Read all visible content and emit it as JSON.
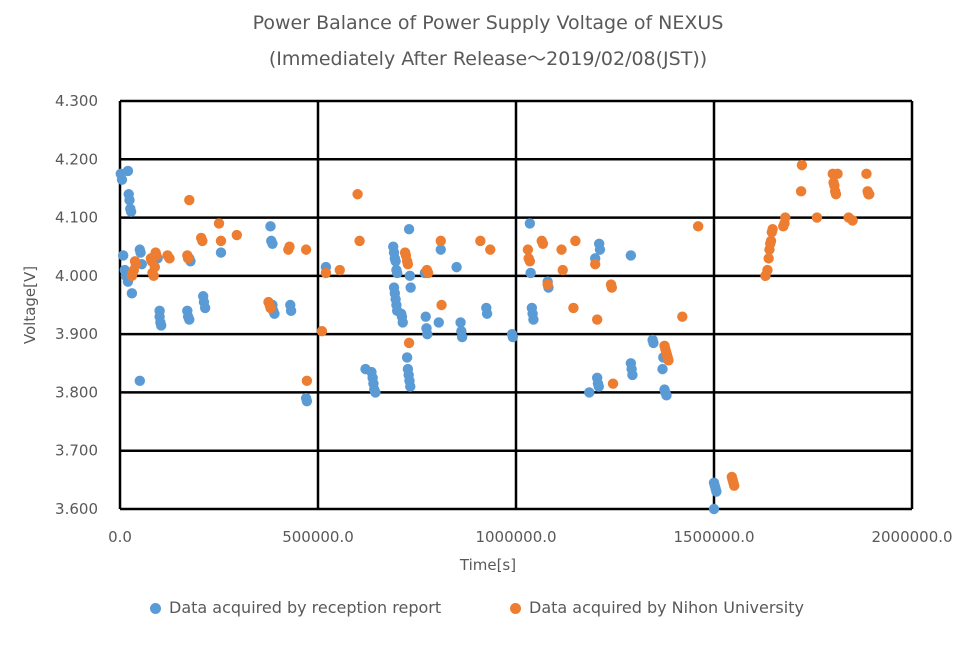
{
  "chart_data": {
    "type": "scatter",
    "title": "Power Balance of Power Supply Voltage of NEXUS",
    "subtitle": "(Immediately After Release～2019/02/08(JST))",
    "xlabel": "Time[s]",
    "ylabel": "Voltage[V]",
    "xlim": [
      0,
      2000000
    ],
    "ylim": [
      3.6,
      4.3
    ],
    "x_ticks": [
      "0.0",
      "500000.0",
      "1000000.0",
      "1500000.0",
      "2000000.0"
    ],
    "y_ticks": [
      "3.600",
      "3.700",
      "3.800",
      "3.900",
      "4.000",
      "4.100",
      "4.200",
      "4.300"
    ],
    "grid": true,
    "legend_position": "bottom",
    "series": [
      {
        "name": "Data acquired by reception report",
        "color": "#5B9BD5",
        "points": [
          [
            2000,
            4.175
          ],
          [
            5000,
            4.165
          ],
          [
            8000,
            4.035
          ],
          [
            12000,
            4.01
          ],
          [
            15000,
            4.0
          ],
          [
            20000,
            3.99
          ],
          [
            20000,
            4.18
          ],
          [
            22000,
            4.14
          ],
          [
            24000,
            4.13
          ],
          [
            26000,
            4.115
          ],
          [
            28000,
            4.11
          ],
          [
            30000,
            3.97
          ],
          [
            50000,
            3.82
          ],
          [
            50000,
            4.045
          ],
          [
            52000,
            4.04
          ],
          [
            55000,
            4.02
          ],
          [
            95000,
            4.03
          ],
          [
            100000,
            3.94
          ],
          [
            100000,
            3.93
          ],
          [
            102000,
            3.92
          ],
          [
            104000,
            3.915
          ],
          [
            170000,
            3.94
          ],
          [
            172000,
            3.93
          ],
          [
            175000,
            3.925
          ],
          [
            175000,
            4.03
          ],
          [
            178000,
            4.025
          ],
          [
            210000,
            3.965
          ],
          [
            212000,
            3.955
          ],
          [
            215000,
            3.945
          ],
          [
            255000,
            4.04
          ],
          [
            380000,
            4.085
          ],
          [
            382000,
            4.06
          ],
          [
            385000,
            4.055
          ],
          [
            385000,
            3.95
          ],
          [
            387000,
            3.94
          ],
          [
            390000,
            3.935
          ],
          [
            430000,
            3.95
          ],
          [
            432000,
            3.94
          ],
          [
            470000,
            3.79
          ],
          [
            472000,
            3.785
          ],
          [
            520000,
            4.015
          ],
          [
            620000,
            3.84
          ],
          [
            635000,
            3.835
          ],
          [
            638000,
            3.825
          ],
          [
            640000,
            3.815
          ],
          [
            642000,
            3.805
          ],
          [
            645000,
            3.8
          ],
          [
            690000,
            4.05
          ],
          [
            692000,
            4.04
          ],
          [
            694000,
            4.03
          ],
          [
            696000,
            4.025
          ],
          [
            698000,
            4.01
          ],
          [
            700000,
            4.005
          ],
          [
            692000,
            3.98
          ],
          [
            694000,
            3.97
          ],
          [
            696000,
            3.96
          ],
          [
            698000,
            3.95
          ],
          [
            700000,
            3.94
          ],
          [
            710000,
            3.935
          ],
          [
            712000,
            3.93
          ],
          [
            714000,
            3.92
          ],
          [
            725000,
            3.86
          ],
          [
            727000,
            3.84
          ],
          [
            729000,
            3.83
          ],
          [
            731000,
            3.82
          ],
          [
            733000,
            3.81
          ],
          [
            730000,
            4.08
          ],
          [
            732000,
            4.0
          ],
          [
            734000,
            3.98
          ],
          [
            770000,
            4.005
          ],
          [
            772000,
            3.93
          ],
          [
            774000,
            3.91
          ],
          [
            776000,
            3.9
          ],
          [
            805000,
            3.92
          ],
          [
            810000,
            4.045
          ],
          [
            850000,
            4.015
          ],
          [
            860000,
            3.92
          ],
          [
            862000,
            3.905
          ],
          [
            864000,
            3.895
          ],
          [
            925000,
            3.945
          ],
          [
            927000,
            3.935
          ],
          [
            990000,
            3.9
          ],
          [
            992000,
            3.895
          ],
          [
            1035000,
            4.09
          ],
          [
            1037000,
            4.005
          ],
          [
            1040000,
            3.945
          ],
          [
            1042000,
            3.935
          ],
          [
            1044000,
            3.925
          ],
          [
            1080000,
            3.99
          ],
          [
            1082000,
            3.98
          ],
          [
            1185000,
            3.8
          ],
          [
            1200000,
            4.03
          ],
          [
            1205000,
            3.825
          ],
          [
            1207000,
            3.815
          ],
          [
            1209000,
            3.81
          ],
          [
            1210000,
            4.055
          ],
          [
            1212000,
            4.045
          ],
          [
            1290000,
            4.035
          ],
          [
            1290000,
            3.85
          ],
          [
            1292000,
            3.84
          ],
          [
            1294000,
            3.83
          ],
          [
            1345000,
            3.89
          ],
          [
            1347000,
            3.885
          ],
          [
            1370000,
            3.84
          ],
          [
            1372000,
            3.86
          ],
          [
            1375000,
            3.805
          ],
          [
            1377000,
            3.8
          ],
          [
            1380000,
            3.795
          ],
          [
            1500000,
            3.645
          ],
          [
            1502000,
            3.64
          ],
          [
            1504000,
            3.635
          ],
          [
            1506000,
            3.63
          ],
          [
            1500000,
            3.6
          ]
        ]
      },
      {
        "name": "Data acquired by Nihon University",
        "color": "#ED7D31",
        "points": [
          [
            30000,
            4.0
          ],
          [
            32000,
            4.005
          ],
          [
            35000,
            4.01
          ],
          [
            38000,
            4.025
          ],
          [
            40000,
            4.02
          ],
          [
            78000,
            4.03
          ],
          [
            80000,
            4.025
          ],
          [
            82000,
            4.005
          ],
          [
            85000,
            4.0
          ],
          [
            88000,
            4.015
          ],
          [
            90000,
            4.04
          ],
          [
            92000,
            4.035
          ],
          [
            120000,
            4.035
          ],
          [
            125000,
            4.03
          ],
          [
            170000,
            4.035
          ],
          [
            172000,
            4.03
          ],
          [
            175000,
            4.13
          ],
          [
            205000,
            4.065
          ],
          [
            208000,
            4.06
          ],
          [
            250000,
            4.09
          ],
          [
            255000,
            4.06
          ],
          [
            295000,
            4.07
          ],
          [
            375000,
            3.955
          ],
          [
            378000,
            3.95
          ],
          [
            380000,
            3.945
          ],
          [
            425000,
            4.045
          ],
          [
            428000,
            4.05
          ],
          [
            470000,
            4.045
          ],
          [
            472000,
            3.82
          ],
          [
            510000,
            3.905
          ],
          [
            520000,
            4.005
          ],
          [
            555000,
            4.01
          ],
          [
            600000,
            4.14
          ],
          [
            605000,
            4.06
          ],
          [
            720000,
            4.04
          ],
          [
            722000,
            4.035
          ],
          [
            725000,
            4.025
          ],
          [
            727000,
            4.02
          ],
          [
            730000,
            3.885
          ],
          [
            775000,
            4.01
          ],
          [
            778000,
            4.005
          ],
          [
            810000,
            4.06
          ],
          [
            812000,
            3.95
          ],
          [
            910000,
            4.06
          ],
          [
            935000,
            4.045
          ],
          [
            1030000,
            4.045
          ],
          [
            1032000,
            4.03
          ],
          [
            1035000,
            4.025
          ],
          [
            1065000,
            4.06
          ],
          [
            1068000,
            4.055
          ],
          [
            1080000,
            3.985
          ],
          [
            1115000,
            4.045
          ],
          [
            1118000,
            4.01
          ],
          [
            1145000,
            3.945
          ],
          [
            1150000,
            4.06
          ],
          [
            1200000,
            4.02
          ],
          [
            1205000,
            3.925
          ],
          [
            1240000,
            3.985
          ],
          [
            1242000,
            3.98
          ],
          [
            1245000,
            3.815
          ],
          [
            1375000,
            3.88
          ],
          [
            1377000,
            3.875
          ],
          [
            1379000,
            3.87
          ],
          [
            1381000,
            3.865
          ],
          [
            1383000,
            3.86
          ],
          [
            1385000,
            3.855
          ],
          [
            1420000,
            3.93
          ],
          [
            1460000,
            4.085
          ],
          [
            1545000,
            3.655
          ],
          [
            1547000,
            3.65
          ],
          [
            1549000,
            3.645
          ],
          [
            1551000,
            3.64
          ],
          [
            1630000,
            4.0
          ],
          [
            1635000,
            4.01
          ],
          [
            1638000,
            4.03
          ],
          [
            1640000,
            4.045
          ],
          [
            1642000,
            4.055
          ],
          [
            1644000,
            4.06
          ],
          [
            1646000,
            4.075
          ],
          [
            1648000,
            4.08
          ],
          [
            1675000,
            4.085
          ],
          [
            1678000,
            4.09
          ],
          [
            1680000,
            4.1
          ],
          [
            1720000,
            4.145
          ],
          [
            1722000,
            4.19
          ],
          [
            1760000,
            4.1
          ],
          [
            1800000,
            4.175
          ],
          [
            1802000,
            4.16
          ],
          [
            1804000,
            4.155
          ],
          [
            1806000,
            4.145
          ],
          [
            1808000,
            4.14
          ],
          [
            1812000,
            4.175
          ],
          [
            1840000,
            4.1
          ],
          [
            1850000,
            4.095
          ],
          [
            1885000,
            4.175
          ],
          [
            1888000,
            4.145
          ],
          [
            1890000,
            4.14
          ],
          [
            1892000,
            4.14
          ]
        ]
      }
    ]
  }
}
